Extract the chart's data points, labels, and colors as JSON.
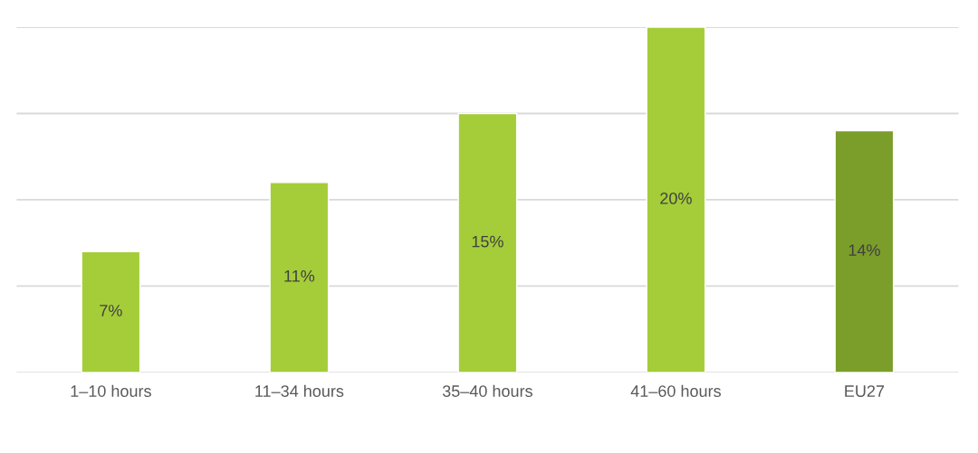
{
  "chart_data": {
    "type": "bar",
    "categories": [
      "1–10 hours",
      "11–34 hours",
      "35–40 hours",
      "41–60 hours",
      "EU27"
    ],
    "values": [
      7,
      11,
      15,
      20,
      14
    ],
    "colors": [
      "#a5cd39",
      "#a5cd39",
      "#a5cd39",
      "#a5cd39",
      "#7b9e2a"
    ],
    "value_labels": [
      "7%",
      "11%",
      "15%",
      "20%",
      "14%"
    ],
    "ylim": [
      0,
      20
    ],
    "yticks": [
      {
        "value": 0,
        "label": null
      },
      {
        "value": 5,
        "label": null
      },
      {
        "value": 10,
        "label": null
      },
      {
        "value": 15,
        "label": null
      },
      {
        "value": 20,
        "label": null
      }
    ],
    "grid": "y",
    "tick_labels": "x"
  }
}
